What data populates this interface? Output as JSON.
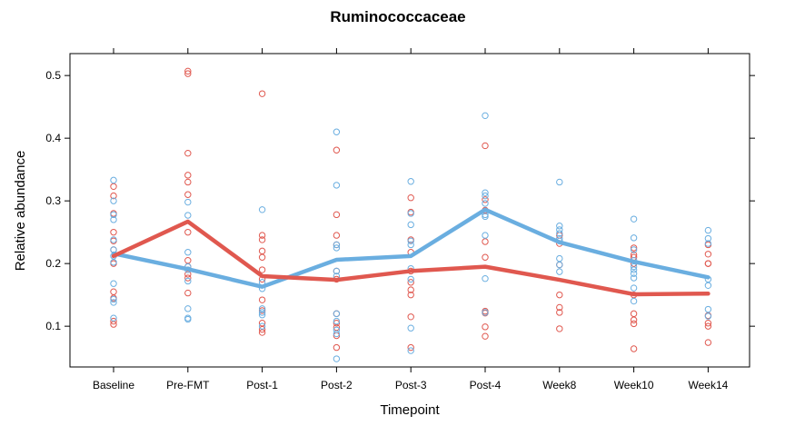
{
  "chart_data": {
    "type": "line",
    "title": "Ruminococcaceae",
    "xlabel": "Timepoint",
    "ylabel": "Relative abundance",
    "categories": [
      "Baseline",
      "Pre-FMT",
      "Post-1",
      "Post-2",
      "Post-3",
      "Post-4",
      "Week8",
      "Week10",
      "Week14"
    ],
    "ylim": [
      0.035,
      0.535
    ],
    "yticks": [
      0.1,
      0.2,
      0.3,
      0.4,
      0.5
    ],
    "ytick_labels": [
      "0.1",
      "0.2",
      "0.3",
      "0.4",
      "0.5"
    ],
    "grid": false,
    "legend": "none",
    "series": [
      {
        "color": "#e0584f",
        "mean_values": [
          0.212,
          0.267,
          0.18,
          0.174,
          0.188,
          0.195,
          0.174,
          0.151,
          0.152
        ],
        "points": [
          [
            0.308,
            0.28,
            0.25,
            0.236,
            0.222,
            0.2,
            0.155,
            0.145,
            0.108,
            0.103,
            0.323
          ],
          [
            0.507,
            0.503,
            0.376,
            0.341,
            0.33,
            0.31,
            0.25,
            0.205,
            0.195,
            0.183,
            0.177,
            0.153
          ],
          [
            0.471,
            0.245,
            0.238,
            0.22,
            0.21,
            0.19,
            0.175,
            0.142,
            0.125,
            0.105,
            0.095,
            0.09
          ],
          [
            0.381,
            0.278,
            0.245,
            0.23,
            0.188,
            0.175,
            0.12,
            0.105,
            0.098,
            0.085,
            0.066
          ],
          [
            0.305,
            0.282,
            0.238,
            0.218,
            0.188,
            0.17,
            0.158,
            0.15,
            0.115,
            0.066
          ],
          [
            0.388,
            0.302,
            0.285,
            0.235,
            0.21,
            0.124,
            0.121,
            0.099,
            0.084
          ],
          [
            0.245,
            0.232,
            0.198,
            0.15,
            0.13,
            0.122,
            0.096
          ],
          [
            0.225,
            0.214,
            0.21,
            0.2,
            0.15,
            0.12,
            0.11,
            0.104,
            0.064
          ],
          [
            0.23,
            0.215,
            0.2,
            0.2,
            0.117,
            0.105,
            0.1,
            0.074
          ]
        ]
      },
      {
        "color": "#6aaee0",
        "mean_values": [
          0.216,
          0.191,
          0.163,
          0.206,
          0.212,
          0.286,
          0.234,
          0.203,
          0.178
        ],
        "points": [
          [
            0.333,
            0.3,
            0.278,
            0.27,
            0.238,
            0.222,
            0.212,
            0.202,
            0.168,
            0.143,
            0.138,
            0.113
          ],
          [
            0.298,
            0.277,
            0.218,
            0.195,
            0.19,
            0.172,
            0.128,
            0.113,
            0.111
          ],
          [
            0.286,
            0.17,
            0.16,
            0.128,
            0.122,
            0.118,
            0.1
          ],
          [
            0.41,
            0.325,
            0.23,
            0.225,
            0.188,
            0.18,
            0.12,
            0.108,
            0.094,
            0.088,
            0.048
          ],
          [
            0.331,
            0.28,
            0.262,
            0.236,
            0.23,
            0.192,
            0.175,
            0.097,
            0.061
          ],
          [
            0.436,
            0.313,
            0.308,
            0.296,
            0.278,
            0.275,
            0.245,
            0.176,
            0.122
          ],
          [
            0.33,
            0.26,
            0.254,
            0.248,
            0.24,
            0.236,
            0.208,
            0.198,
            0.187
          ],
          [
            0.271,
            0.241,
            0.222,
            0.205,
            0.195,
            0.19,
            0.184,
            0.177,
            0.161,
            0.14
          ],
          [
            0.253,
            0.24,
            0.232,
            0.175,
            0.165,
            0.127,
            0.116
          ]
        ]
      }
    ]
  }
}
